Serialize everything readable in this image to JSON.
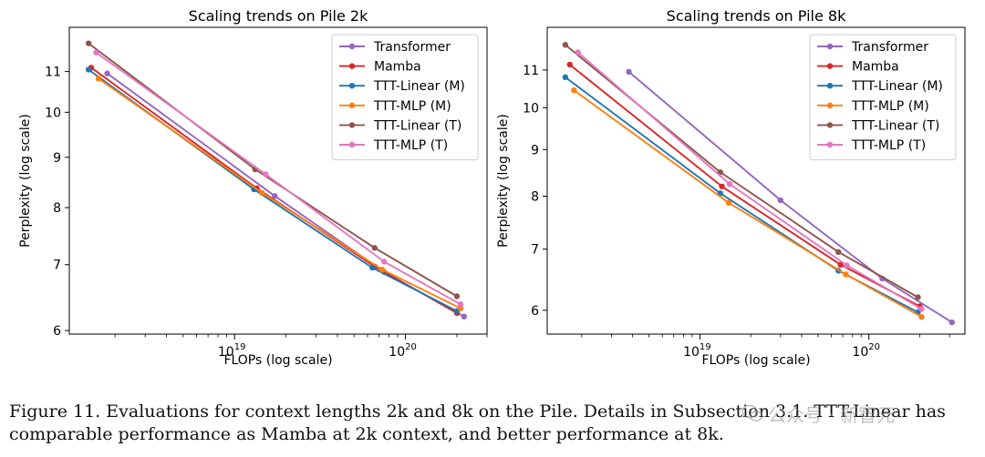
{
  "chart_data": [
    {
      "type": "line",
      "title": "Scaling trends on Pile 2k",
      "xlabel": "FLOPs (log scale)",
      "ylabel": "Perplexity (log scale)",
      "xscale": "log",
      "yscale": "log",
      "xlim": [
        1.08e+18,
        3e+20
      ],
      "ylim": [
        5.95,
        12.2
      ],
      "xticks": [
        {
          "value": 1e+19,
          "base": "10",
          "exp": "19"
        },
        {
          "value": 1e+20,
          "base": "10",
          "exp": "20"
        }
      ],
      "yticks": [
        {
          "value": 6,
          "label": "6"
        },
        {
          "value": 7,
          "label": "7"
        },
        {
          "value": 8,
          "label": "8"
        },
        {
          "value": 9,
          "label": "9"
        },
        {
          "value": 10,
          "label": "10"
        },
        {
          "value": 11,
          "label": "11"
        }
      ],
      "legend_position": "upper-right",
      "series": [
        {
          "name": "Transformer",
          "color": "#9467bd",
          "x": [
            1.8e+18,
            1.72e+19,
            7.5e+19,
            2.2e+20
          ],
          "y": [
            10.95,
            8.22,
            6.88,
            6.2
          ]
        },
        {
          "name": "Mamba",
          "color": "#d62728",
          "x": [
            1.45e+18,
            1.35e+19,
            6.6e+19,
            2e+20
          ],
          "y": [
            11.1,
            8.37,
            6.97,
            6.25
          ]
        },
        {
          "name": "TTT-Linear (M)",
          "color": "#1f77b4",
          "x": [
            1.4e+18,
            1.3e+19,
            6.4e+19,
            2e+20
          ],
          "y": [
            11.05,
            8.35,
            6.95,
            6.28
          ]
        },
        {
          "name": "TTT-MLP (M)",
          "color": "#ff7f0e",
          "x": [
            1.6e+18,
            1.45e+19,
            7.3e+19,
            2.1e+20
          ],
          "y": [
            10.82,
            8.28,
            6.92,
            6.32
          ]
        },
        {
          "name": "TTT-Linear (T)",
          "color": "#8c564b",
          "x": [
            1.4e+18,
            1.32e+19,
            6.6e+19,
            2e+20
          ],
          "y": [
            11.75,
            8.75,
            7.28,
            6.5
          ]
        },
        {
          "name": "TTT-MLP (T)",
          "color": "#e377c2",
          "x": [
            1.55e+18,
            1.52e+19,
            7.5e+19,
            2.1e+20
          ],
          "y": [
            11.5,
            8.65,
            7.05,
            6.38
          ]
        }
      ]
    },
    {
      "type": "line",
      "title": "Scaling trends on Pile 8k",
      "xlabel": "FLOPs (log scale)",
      "ylabel": "Perplexity (log scale)",
      "xscale": "log",
      "yscale": "log",
      "xlim": [
        1.25e+18,
        3.7e+20
      ],
      "ylim": [
        5.65,
        12.25
      ],
      "xticks": [
        {
          "value": 1e+19,
          "base": "10",
          "exp": "19"
        },
        {
          "value": 1e+20,
          "base": "10",
          "exp": "20"
        }
      ],
      "yticks": [
        {
          "value": 6,
          "label": "6"
        },
        {
          "value": 7,
          "label": "7"
        },
        {
          "value": 8,
          "label": "8"
        },
        {
          "value": 9,
          "label": "9"
        },
        {
          "value": 10,
          "label": "10"
        },
        {
          "value": 11,
          "label": "11"
        }
      ],
      "legend_position": "upper-right",
      "series": [
        {
          "name": "Transformer",
          "color": "#9467bd",
          "x": [
            3.8e+18,
            3e+19,
            1.2e+20,
            3.1e+20
          ],
          "y": [
            10.95,
            7.92,
            6.5,
            5.82
          ]
        },
        {
          "name": "Mamba",
          "color": "#d62728",
          "x": [
            1.7e+18,
            1.35e+19,
            6.8e+19,
            2e+20
          ],
          "y": [
            11.15,
            8.2,
            6.73,
            6.06
          ]
        },
        {
          "name": "TTT-Linear (M)",
          "color": "#1f77b4",
          "x": [
            1.6e+18,
            1.32e+19,
            6.6e+19,
            1.95e+20
          ],
          "y": [
            10.8,
            8.06,
            6.63,
            5.97
          ]
        },
        {
          "name": "TTT-MLP (M)",
          "color": "#ff7f0e",
          "x": [
            1.8e+18,
            1.48e+19,
            7.3e+19,
            2.05e+20
          ],
          "y": [
            10.45,
            7.87,
            6.57,
            5.9
          ]
        },
        {
          "name": "TTT-Linear (T)",
          "color": "#8c564b",
          "x": [
            1.6e+18,
            1.32e+19,
            6.6e+19,
            1.95e+20
          ],
          "y": [
            11.72,
            8.5,
            6.95,
            6.2
          ]
        },
        {
          "name": "TTT-MLP (T)",
          "color": "#e377c2",
          "x": [
            1.9e+18,
            1.5e+19,
            7.4e+19,
            2.05e+20
          ],
          "y": [
            11.5,
            8.25,
            6.72,
            6.02
          ]
        }
      ]
    }
  ],
  "caption": {
    "line1": "Figure 11. Evaluations for context lengths 2k and 8k on the Pile. Details in Subsection 3.1. TTT-Linear has",
    "line2": "comparable performance as Mamba at 2k context, and better performance at 8k."
  },
  "watermark": {
    "text": "公众号 · 新智元"
  }
}
